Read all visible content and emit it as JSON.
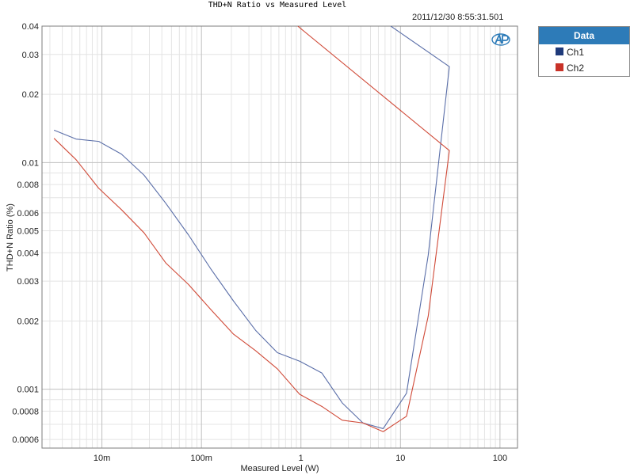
{
  "chart_data": {
    "type": "line",
    "title": "THD+N Ratio vs Measured Level",
    "timestamp": "2011/12/30 8:55:31.501",
    "xlabel": "Measured Level (W)",
    "ylabel": "THD+N Ratio (%)",
    "x_scale": "log",
    "y_scale": "log",
    "xlim": [
      0.0025,
      150
    ],
    "ylim": [
      0.00055,
      0.04
    ],
    "grid": true,
    "x_ticks": [
      {
        "value": 0.01,
        "label": "10m"
      },
      {
        "value": 0.1,
        "label": "100m"
      },
      {
        "value": 1,
        "label": "1"
      },
      {
        "value": 10,
        "label": "10"
      },
      {
        "value": 100,
        "label": "100"
      }
    ],
    "y_ticks": [
      {
        "value": 0.0006,
        "label": "0.0006"
      },
      {
        "value": 0.0008,
        "label": "0.0008"
      },
      {
        "value": 0.001,
        "label": "0.001"
      },
      {
        "value": 0.002,
        "label": "0.002"
      },
      {
        "value": 0.003,
        "label": "0.003"
      },
      {
        "value": 0.004,
        "label": "0.004"
      },
      {
        "value": 0.005,
        "label": "0.005"
      },
      {
        "value": 0.006,
        "label": "0.006"
      },
      {
        "value": 0.008,
        "label": "0.008"
      },
      {
        "value": 0.01,
        "label": "0.01"
      },
      {
        "value": 0.02,
        "label": "0.02"
      },
      {
        "value": 0.03,
        "label": "0.03"
      },
      {
        "value": 0.04,
        "label": "0.04"
      }
    ],
    "legend": {
      "title": "Data",
      "placement": "outside-top-right"
    },
    "series": [
      {
        "name": "Ch1",
        "color": "#5a6ea8",
        "points": [
          [
            0.0033,
            0.0139
          ],
          [
            0.0055,
            0.0127
          ],
          [
            0.0093,
            0.0124
          ],
          [
            0.0157,
            0.0109
          ],
          [
            0.0265,
            0.0088
          ],
          [
            0.044,
            0.0066
          ],
          [
            0.074,
            0.0048
          ],
          [
            0.124,
            0.0034
          ],
          [
            0.21,
            0.00245
          ],
          [
            0.35,
            0.00182
          ],
          [
            0.58,
            0.00145
          ],
          [
            0.97,
            0.00133
          ],
          [
            1.62,
            0.00118
          ],
          [
            2.6,
            0.00087
          ],
          [
            4.2,
            0.00071
          ],
          [
            6.7,
            0.00067
          ],
          [
            11.5,
            0.00096
          ],
          [
            19.0,
            0.0039
          ],
          [
            31.0,
            0.0265
          ],
          [
            8.0,
            0.04
          ]
        ]
      },
      {
        "name": "Ch2",
        "color": "#d04a38",
        "points": [
          [
            0.0033,
            0.0128
          ],
          [
            0.0055,
            0.0103
          ],
          [
            0.0093,
            0.0077
          ],
          [
            0.0157,
            0.0062
          ],
          [
            0.0265,
            0.0049
          ],
          [
            0.044,
            0.0036
          ],
          [
            0.074,
            0.0029
          ],
          [
            0.124,
            0.00225
          ],
          [
            0.21,
            0.00175
          ],
          [
            0.35,
            0.00148
          ],
          [
            0.58,
            0.00123
          ],
          [
            0.97,
            0.00095
          ],
          [
            1.62,
            0.00084
          ],
          [
            2.6,
            0.00073
          ],
          [
            4.2,
            0.00071
          ],
          [
            6.7,
            0.00065
          ],
          [
            11.5,
            0.00076
          ],
          [
            19.0,
            0.0021
          ],
          [
            31.0,
            0.0113
          ],
          [
            0.93,
            0.04
          ]
        ]
      }
    ]
  }
}
